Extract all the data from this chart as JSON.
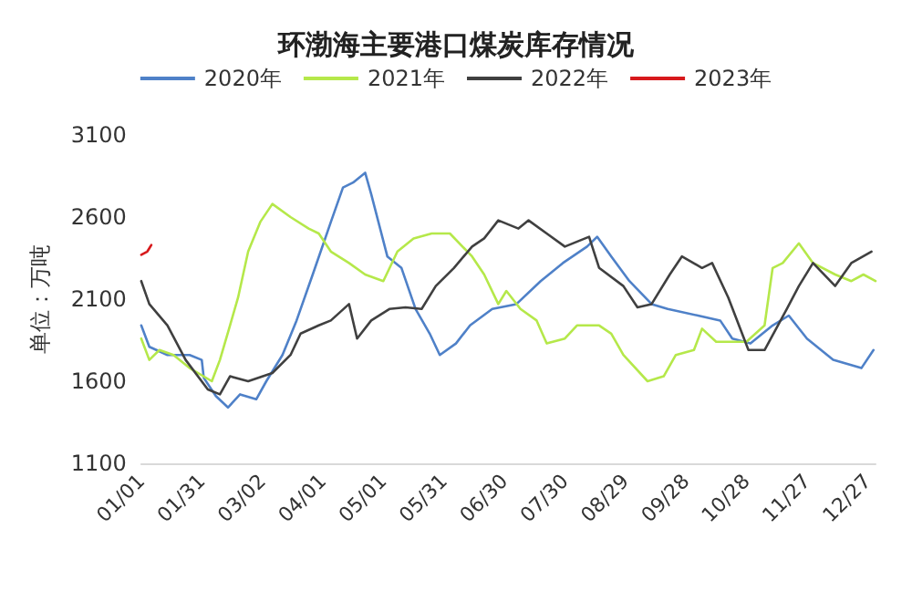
{
  "chart_data": {
    "type": "line",
    "title": "环渤海主要港口煤炭库存情况",
    "ylabel": "单位：万吨",
    "xlim": [
      "--01-01",
      "--12-31"
    ],
    "xticks": [
      {
        "value": "--01-01",
        "label": "01/01"
      },
      {
        "value": "--01-31",
        "label": "01/31"
      },
      {
        "value": "--03-02",
        "label": "03/02"
      },
      {
        "value": "--04-01",
        "label": "04/01"
      },
      {
        "value": "--05-01",
        "label": "05/01"
      },
      {
        "value": "--05-31",
        "label": "05/31"
      },
      {
        "value": "--06-30",
        "label": "06/30"
      },
      {
        "value": "--07-30",
        "label": "07/30"
      },
      {
        "value": "--08-29",
        "label": "08/29"
      },
      {
        "value": "--09-28",
        "label": "09/28"
      },
      {
        "value": "--10-28",
        "label": "10/28"
      },
      {
        "value": "--11-27",
        "label": "11/27"
      },
      {
        "value": "--12-27",
        "label": "12/27"
      }
    ],
    "ylim": [
      1100,
      3100
    ],
    "yticks": [
      1100,
      1600,
      2100,
      2600,
      3100
    ],
    "grid": false,
    "legend": "top",
    "marker": "none",
    "line_style": "solid",
    "series": [
      {
        "name": "2020年",
        "color": "#4f81c8",
        "x": [
          "--01-01",
          "--01-05",
          "--01-14",
          "--01-25",
          "--01-31",
          "--02-01",
          "--02-07",
          "--02-13",
          "--02-19",
          "--02-27",
          "--03-04",
          "--03-12",
          "--03-19",
          "--03-27",
          "--04-05",
          "--04-11",
          "--04-16",
          "--04-22",
          "--04-25",
          "--05-03",
          "--05-10",
          "--05-17",
          "--05-24",
          "--05-29",
          "--06-06",
          "--06-13",
          "--06-24",
          "--07-06",
          "--07-18",
          "--07-29",
          "--08-10",
          "--08-15",
          "--08-22",
          "--08-31",
          "--09-11",
          "--09-19",
          "--10-04",
          "--10-15",
          "--10-21",
          "--10-30",
          "--11-10",
          "--11-18",
          "--11-27",
          "--12-10",
          "--12-24",
          "--12-30"
        ],
        "values": [
          1940,
          1810,
          1760,
          1760,
          1730,
          1620,
          1510,
          1440,
          1520,
          1490,
          1600,
          1760,
          1970,
          2250,
          2570,
          2780,
          2810,
          2870,
          2740,
          2360,
          2290,
          2040,
          1890,
          1760,
          1830,
          1940,
          2040,
          2070,
          2210,
          2320,
          2420,
          2480,
          2360,
          2210,
          2070,
          2040,
          2000,
          1970,
          1860,
          1830,
          1940,
          2000,
          1860,
          1730,
          1680,
          1790
        ]
      },
      {
        "name": "2021年",
        "color": "#b5e84a",
        "x": [
          "--01-01",
          "--01-05",
          "--01-10",
          "--01-17",
          "--01-25",
          "--02-05",
          "--02-09",
          "--02-14",
          "--02-18",
          "--02-23",
          "--03-01",
          "--03-07",
          "--03-16",
          "--03-25",
          "--03-30",
          "--04-05",
          "--04-14",
          "--04-22",
          "--05-01",
          "--05-08",
          "--05-16",
          "--05-25",
          "--06-03",
          "--06-14",
          "--06-20",
          "--06-27",
          "--07-01",
          "--07-08",
          "--07-16",
          "--07-21",
          "--07-30",
          "--08-05",
          "--08-16",
          "--08-22",
          "--08-28",
          "--09-09",
          "--09-17",
          "--09-23",
          "--10-02",
          "--10-06",
          "--10-13",
          "--10-28",
          "--11-06",
          "--11-10",
          "--11-15",
          "--11-23",
          "--11-30",
          "--12-11",
          "--12-19",
          "--12-25",
          "--12-31"
        ],
        "values": [
          1860,
          1730,
          1790,
          1760,
          1680,
          1600,
          1730,
          1940,
          2110,
          2390,
          2570,
          2680,
          2600,
          2530,
          2500,
          2390,
          2320,
          2250,
          2210,
          2390,
          2470,
          2500,
          2500,
          2360,
          2250,
          2070,
          2150,
          2040,
          1970,
          1830,
          1860,
          1940,
          1940,
          1890,
          1760,
          1600,
          1630,
          1760,
          1790,
          1920,
          1840,
          1840,
          1940,
          2290,
          2320,
          2440,
          2320,
          2250,
          2210,
          2250,
          2210
        ]
      },
      {
        "name": "2022年",
        "color": "#404040",
        "x": [
          "--01-01",
          "--01-05",
          "--01-14",
          "--01-23",
          "--02-03",
          "--02-09",
          "--02-14",
          "--02-23",
          "--03-07",
          "--03-16",
          "--03-21",
          "--03-30",
          "--04-05",
          "--04-14",
          "--04-18",
          "--04-25",
          "--05-04",
          "--05-12",
          "--05-20",
          "--05-27",
          "--06-05",
          "--06-14",
          "--06-20",
          "--06-27",
          "--07-07",
          "--07-12",
          "--07-21",
          "--07-30",
          "--08-11",
          "--08-16",
          "--08-28",
          "--09-04",
          "--09-11",
          "--09-20",
          "--09-26",
          "--10-06",
          "--10-11",
          "--10-19",
          "--10-29",
          "--11-06",
          "--11-17",
          "--11-23",
          "--11-30",
          "--12-11",
          "--12-19",
          "--12-29"
        ],
        "values": [
          2210,
          2070,
          1940,
          1730,
          1550,
          1520,
          1630,
          1600,
          1650,
          1760,
          1890,
          1940,
          1970,
          2070,
          1860,
          1970,
          2040,
          2050,
          2040,
          2180,
          2290,
          2420,
          2470,
          2580,
          2530,
          2580,
          2500,
          2420,
          2480,
          2290,
          2180,
          2050,
          2070,
          2250,
          2360,
          2290,
          2320,
          2110,
          1790,
          1790,
          2040,
          2180,
          2320,
          2180,
          2320,
          2390
        ]
      },
      {
        "name": "2023年",
        "color": "#d7191c",
        "x": [
          "--01-01",
          "--01-04",
          "--01-05",
          "--01-06"
        ],
        "values": [
          2370,
          2390,
          2410,
          2430
        ]
      }
    ]
  }
}
